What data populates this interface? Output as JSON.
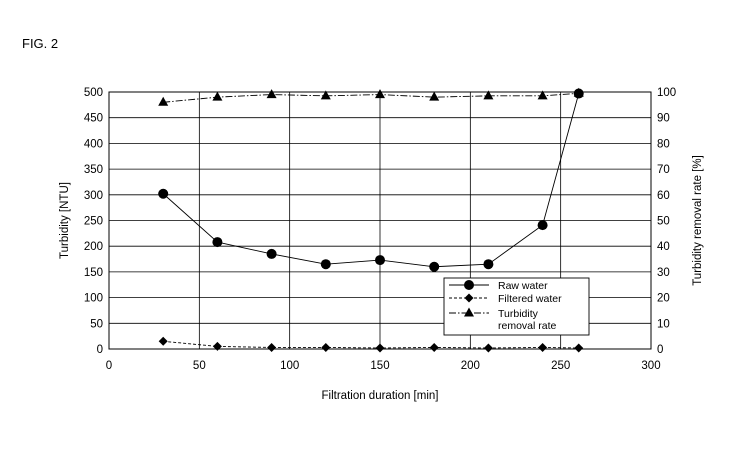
{
  "figure": {
    "label": "FIG. 2"
  },
  "chart_data": {
    "type": "line",
    "xlabel": "Filtration duration [min]",
    "ylabel": "Turbidity [NTU]",
    "y2label": "Turbidity removal rate [%]",
    "xlim": [
      0,
      300
    ],
    "ylim": [
      0,
      500
    ],
    "y2lim": [
      0,
      100
    ],
    "xticks": [
      "0",
      "50",
      "100",
      "150",
      "200",
      "250",
      "300"
    ],
    "yticks": [
      "0",
      "50",
      "100",
      "150",
      "200",
      "250",
      "300",
      "350",
      "400",
      "450",
      "500"
    ],
    "y2ticks": [
      "0",
      "10",
      "20",
      "30",
      "40",
      "50",
      "60",
      "70",
      "80",
      "90",
      "100"
    ],
    "grid": {
      "horizontal": true,
      "vertical_step": 50
    },
    "legend_position": "lower-right",
    "series": [
      {
        "name": "Raw water",
        "axis": "left",
        "marker": "circle",
        "style": "solid",
        "x": [
          30,
          60,
          90,
          120,
          150,
          180,
          210,
          240,
          260
        ],
        "y": [
          302,
          208,
          185,
          165,
          173,
          160,
          165,
          241,
          497
        ]
      },
      {
        "name": "Filtered water",
        "axis": "left",
        "marker": "diamond",
        "style": "dashed",
        "x": [
          30,
          60,
          90,
          120,
          150,
          180,
          210,
          240,
          260
        ],
        "y": [
          15,
          5,
          3,
          3,
          2,
          3,
          2,
          3,
          2
        ]
      },
      {
        "name": "Turbidity removal rate",
        "legend_lines": [
          "Turbidity",
          "removal rate"
        ],
        "axis": "right",
        "marker": "triangle",
        "style": "dashdot",
        "x": [
          30,
          60,
          90,
          120,
          150,
          180,
          210,
          240,
          260
        ],
        "y": [
          96,
          98,
          99,
          98.5,
          99,
          98,
          98.5,
          98.5,
          99.5
        ]
      }
    ]
  }
}
